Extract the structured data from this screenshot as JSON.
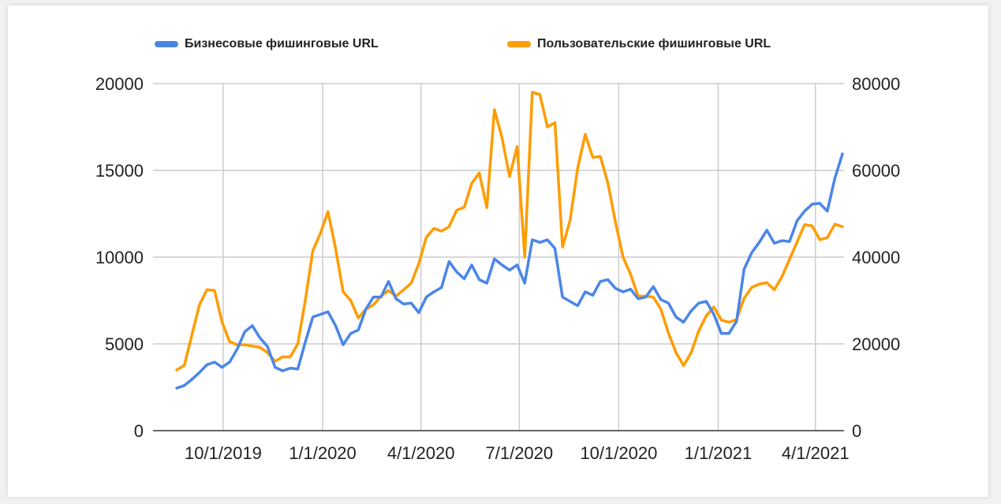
{
  "legend": {
    "series0_label": "Бизнесовые фишинговые URL",
    "series1_label": "Пользовательские фишинговые URL"
  },
  "colors": {
    "series0": "#4a86e8",
    "series1": "#ff9c00",
    "grid": "#cccccc",
    "axis": "#333333"
  },
  "chart_data": {
    "type": "line",
    "x_ticks": [
      "10/1/2019",
      "1/1/2020",
      "4/1/2020",
      "7/1/2020",
      "10/1/2020",
      "1/1/2021",
      "4/1/2021"
    ],
    "left_axis": {
      "ylim": [
        0,
        20000
      ],
      "ticks": [
        "0",
        "5000",
        "10000",
        "15000",
        "20000"
      ]
    },
    "right_axis": {
      "ylim": [
        0,
        80000
      ],
      "ticks": [
        "0",
        "20000",
        "40000",
        "60000",
        "80000"
      ]
    },
    "grid": true,
    "legend_position": "top",
    "x_range": [
      "2019-08-19",
      "2021-04-26"
    ],
    "series": [
      {
        "name": "Бизнесовые фишинговые URL",
        "axis": "left",
        "x": [
          "2019-08-19",
          "2019-08-26",
          "2019-09-02",
          "2019-09-09",
          "2019-09-16",
          "2019-09-23",
          "2019-09-30",
          "2019-10-07",
          "2019-10-14",
          "2019-10-21",
          "2019-10-28",
          "2019-11-04",
          "2019-11-11",
          "2019-11-18",
          "2019-11-25",
          "2019-12-02",
          "2019-12-09",
          "2019-12-16",
          "2019-12-23",
          "2019-12-30",
          "2020-01-06",
          "2020-01-13",
          "2020-01-20",
          "2020-01-27",
          "2020-02-03",
          "2020-02-10",
          "2020-02-17",
          "2020-02-24",
          "2020-03-02",
          "2020-03-09",
          "2020-03-16",
          "2020-03-23",
          "2020-03-30",
          "2020-04-06",
          "2020-04-13",
          "2020-04-20",
          "2020-04-27",
          "2020-05-04",
          "2020-05-11",
          "2020-05-18",
          "2020-05-25",
          "2020-06-01",
          "2020-06-08",
          "2020-06-15",
          "2020-06-22",
          "2020-06-29",
          "2020-07-06",
          "2020-07-13",
          "2020-07-20",
          "2020-07-27",
          "2020-08-03",
          "2020-08-10",
          "2020-08-17",
          "2020-08-24",
          "2020-08-31",
          "2020-09-07",
          "2020-09-14",
          "2020-09-21",
          "2020-09-28",
          "2020-10-05",
          "2020-10-12",
          "2020-10-19",
          "2020-10-26",
          "2020-11-02",
          "2020-11-09",
          "2020-11-16",
          "2020-11-23",
          "2020-11-30",
          "2020-12-07",
          "2020-12-14",
          "2020-12-21",
          "2020-12-28",
          "2021-01-04",
          "2021-01-11",
          "2021-01-18",
          "2021-01-25",
          "2021-02-01",
          "2021-02-08",
          "2021-02-15",
          "2021-02-22",
          "2021-03-01",
          "2021-03-08",
          "2021-03-15",
          "2021-03-22",
          "2021-03-29",
          "2021-04-05",
          "2021-04-12",
          "2021-04-19",
          "2021-04-26"
        ],
        "values": [
          2450,
          2600,
          2950,
          3350,
          3800,
          3950,
          3650,
          3950,
          4700,
          5700,
          6050,
          5350,
          4850,
          3650,
          3450,
          3600,
          3550,
          5100,
          6550,
          6700,
          6850,
          6050,
          4950,
          5600,
          5800,
          7000,
          7700,
          7700,
          8600,
          7600,
          7300,
          7350,
          6800,
          7700,
          8000,
          8250,
          9750,
          9150,
          8750,
          9550,
          8700,
          8500,
          9900,
          9550,
          9250,
          9550,
          8500,
          11000,
          10850,
          11000,
          10500,
          7700,
          7450,
          7200,
          8000,
          7800,
          8600,
          8700,
          8200,
          8000,
          8150,
          7600,
          7700,
          8300,
          7550,
          7350,
          6550,
          6250,
          6900,
          7350,
          7450,
          6700,
          5600,
          5600,
          6300,
          9300,
          10250,
          10850,
          11550,
          10800,
          10950,
          10900,
          12100,
          12650,
          13050,
          13100,
          12650,
          14550,
          15950
        ]
      },
      {
        "name": "Пользовательские фишинговые URL",
        "axis": "right",
        "x": [
          "2019-08-19",
          "2019-08-26",
          "2019-09-02",
          "2019-09-09",
          "2019-09-16",
          "2019-09-23",
          "2019-09-30",
          "2019-10-07",
          "2019-10-14",
          "2019-10-21",
          "2019-10-28",
          "2019-11-04",
          "2019-11-11",
          "2019-11-18",
          "2019-11-25",
          "2019-12-02",
          "2019-12-09",
          "2019-12-16",
          "2019-12-23",
          "2019-12-30",
          "2020-01-06",
          "2020-01-13",
          "2020-01-20",
          "2020-01-27",
          "2020-02-03",
          "2020-02-10",
          "2020-02-17",
          "2020-02-24",
          "2020-03-02",
          "2020-03-09",
          "2020-03-16",
          "2020-03-23",
          "2020-03-30",
          "2020-04-06",
          "2020-04-13",
          "2020-04-20",
          "2020-04-27",
          "2020-05-04",
          "2020-05-11",
          "2020-05-18",
          "2020-05-25",
          "2020-06-01",
          "2020-06-08",
          "2020-06-15",
          "2020-06-22",
          "2020-06-29",
          "2020-07-06",
          "2020-07-13",
          "2020-07-20",
          "2020-07-27",
          "2020-08-03",
          "2020-08-10",
          "2020-08-17",
          "2020-08-24",
          "2020-08-31",
          "2020-09-07",
          "2020-09-14",
          "2020-09-21",
          "2020-09-28",
          "2020-10-05",
          "2020-10-12",
          "2020-10-19",
          "2020-10-26",
          "2020-11-02",
          "2020-11-09",
          "2020-11-16",
          "2020-11-23",
          "2020-11-30",
          "2020-12-07",
          "2020-12-14",
          "2020-12-21",
          "2020-12-28",
          "2021-01-04",
          "2021-01-11",
          "2021-01-18",
          "2021-01-25",
          "2021-02-01",
          "2021-02-08",
          "2021-02-15",
          "2021-02-22",
          "2021-03-01",
          "2021-03-08",
          "2021-03-15",
          "2021-03-22",
          "2021-03-29",
          "2021-04-05",
          "2021-04-12",
          "2021-04-19",
          "2021-04-26"
        ],
        "values": [
          14000,
          15000,
          22000,
          29000,
          32500,
          32300,
          25000,
          20500,
          19800,
          19800,
          19500,
          19200,
          18000,
          16000,
          17000,
          17000,
          20000,
          30000,
          41500,
          45500,
          50500,
          42000,
          32000,
          30000,
          26000,
          28000,
          29000,
          31000,
          32300,
          31000,
          32500,
          34000,
          38500,
          44600,
          46600,
          46000,
          47000,
          50800,
          51500,
          57000,
          59400,
          51400,
          74000,
          67500,
          58600,
          65500,
          40000,
          78000,
          77500,
          70000,
          71000,
          42300,
          48500,
          60500,
          68300,
          63000,
          63200,
          57000,
          48000,
          40000,
          36000,
          31000,
          31000,
          30800,
          28000,
          22500,
          18000,
          15000,
          18000,
          23000,
          26500,
          28500,
          25500,
          25000,
          25600,
          30500,
          33000,
          33800,
          34100,
          32500,
          35500,
          39500,
          43500,
          47500,
          47200,
          44000,
          44500,
          47600,
          47000
        ]
      }
    ]
  }
}
